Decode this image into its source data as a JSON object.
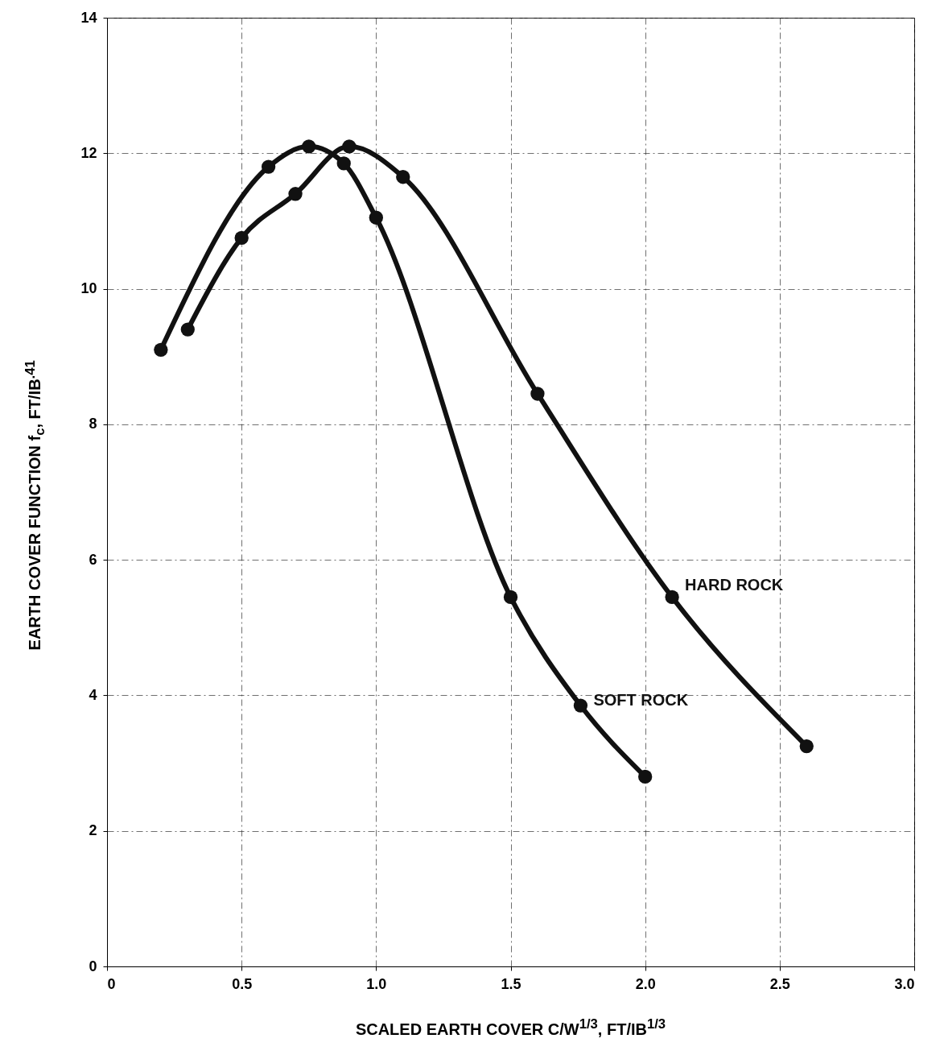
{
  "chart_data": {
    "type": "line",
    "xlabel": "SCALED EARTH COVER C/W$^{1/3}$,  FT/IB$^{1/3}$",
    "ylabel": "EARTH COVER FUNCTION f$_{c}$,  FT/IB$^{.41}$",
    "series": [
      {
        "name": "SOFT ROCK",
        "color": "#111111",
        "x": [
          0.2,
          0.6,
          0.75,
          0.88,
          1.0,
          1.5,
          1.76,
          2.0
        ],
        "values": [
          9.1,
          11.8,
          12.1,
          11.85,
          11.05,
          5.45,
          3.85,
          2.8
        ]
      },
      {
        "name": "HARD ROCK",
        "color": "#111111",
        "x": [
          0.3,
          0.5,
          0.7,
          0.9,
          1.1,
          1.6,
          2.1,
          2.6
        ],
        "values": [
          9.4,
          10.75,
          11.4,
          12.1,
          11.65,
          8.45,
          5.45,
          3.25
        ]
      }
    ],
    "xlim": [
      0,
      3
    ],
    "xticks": [
      0,
      0.5,
      {
        "value": 1,
        "label": "1.0"
      },
      1.5,
      {
        "value": 2,
        "label": "2.0"
      },
      2.5,
      {
        "value": 3,
        "label": "3.0"
      }
    ],
    "ylim": [
      0,
      14
    ],
    "yticks": [
      0,
      2,
      4,
      6,
      8,
      10,
      12,
      14
    ],
    "grid": true,
    "marker": "circle",
    "line_style": "solid"
  }
}
